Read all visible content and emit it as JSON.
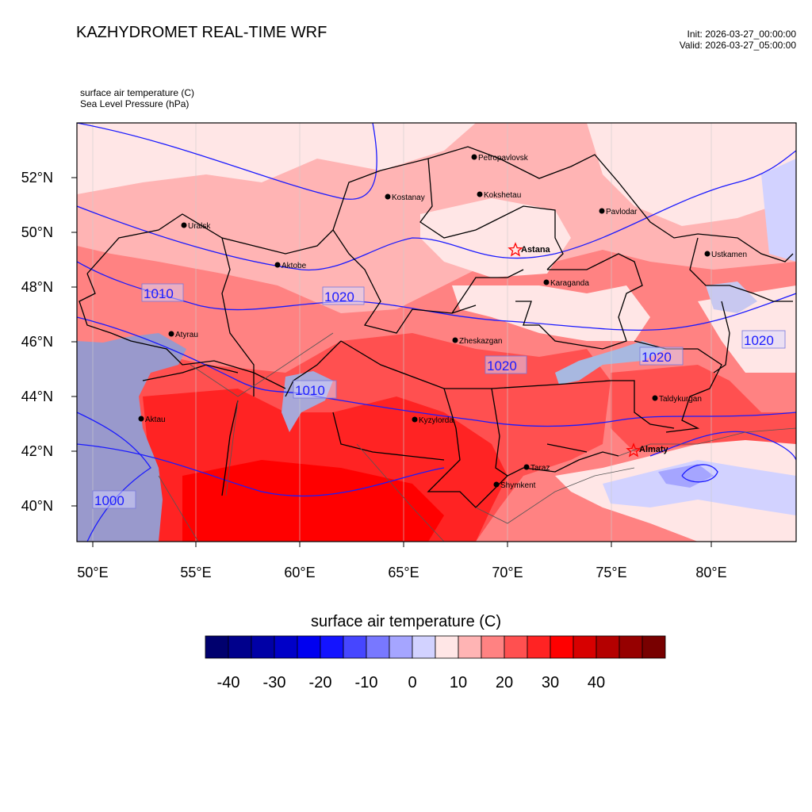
{
  "header": {
    "title": "KAZHYDROMET REAL-TIME WRF",
    "init": "Init: 2026-03-27_00:00:00",
    "valid": "Valid: 2026-03-27_05:00:00"
  },
  "fields": {
    "line1": "surface air temperature   (C)",
    "line2": "Sea Level Pressure   (hPa)"
  },
  "map": {
    "lon_ticks": [
      "50°E",
      "55°E",
      "60°E",
      "65°E",
      "70°E",
      "75°E",
      "80°E"
    ],
    "lat_ticks": [
      "52°N",
      "50°N",
      "48°N",
      "46°N",
      "44°N",
      "42°N",
      "40°N"
    ],
    "cities": [
      {
        "name": "Petropavlovsk"
      },
      {
        "name": "Kostanay"
      },
      {
        "name": "Kokshetau"
      },
      {
        "name": "Pavlodar"
      },
      {
        "name": "Uralsk"
      },
      {
        "name": "Aktobe"
      },
      {
        "name": "Astana",
        "capital": true
      },
      {
        "name": "Ustkamen"
      },
      {
        "name": "Karaganda"
      },
      {
        "name": "Atyrau"
      },
      {
        "name": "Zheskazgan"
      },
      {
        "name": "Taldykurgan"
      },
      {
        "name": "Aktau"
      },
      {
        "name": "Kyzylorda"
      },
      {
        "name": "Almaty",
        "capital": true
      },
      {
        "name": "Taraz"
      },
      {
        "name": "Shymkent"
      }
    ],
    "isobar_labels": [
      "1010",
      "1020",
      "1020",
      "1020",
      "1010",
      "1020",
      "1000"
    ]
  },
  "colorbar": {
    "title": "surface air temperature  (C)",
    "colors": [
      "#00006e",
      "#00008c",
      "#0000a6",
      "#0000c8",
      "#0000f0",
      "#1414ff",
      "#4646ff",
      "#7878ff",
      "#a5a5ff",
      "#d2d2ff",
      "#ffe6e6",
      "#ffb4b4",
      "#ff8282",
      "#ff5050",
      "#ff2323",
      "#ff0000",
      "#d70000",
      "#b40000",
      "#960000",
      "#780000"
    ],
    "labels": [
      "-40",
      "-30",
      "-20",
      "-10",
      "0",
      "10",
      "20",
      "30",
      "40"
    ]
  }
}
